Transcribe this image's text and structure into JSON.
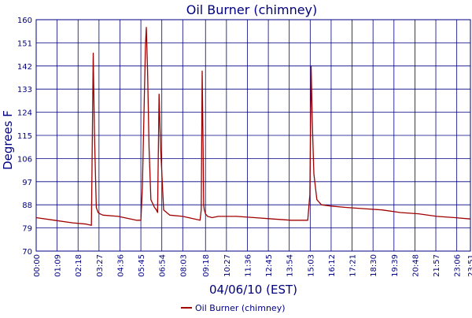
{
  "chart_data": {
    "type": "line",
    "title": "Oil Burner (chimney)",
    "xlabel": "04/06/10 (EST)",
    "ylabel": "Degrees F",
    "ylim": [
      70,
      160
    ],
    "yticks": [
      70,
      79,
      88,
      97,
      106,
      115,
      124,
      133,
      142,
      151,
      160
    ],
    "xlim": [
      0,
      1431
    ],
    "xticks": [
      "00:00",
      "01:09",
      "02:18",
      "03:27",
      "04:36",
      "05:45",
      "06:54",
      "08:03",
      "09:18",
      "10:27",
      "11:36",
      "12:45",
      "13:54",
      "15:03",
      "16:12",
      "17:21",
      "18:30",
      "19:39",
      "20:48",
      "21:57",
      "23:06",
      "23:51"
    ],
    "grid": true,
    "legend": "bottom-center",
    "series": [
      {
        "name": "Oil Burner (chimney)",
        "color": "#a00000",
        "x": [
          "00:00",
          "01:00",
          "02:00",
          "02:45",
          "03:02",
          "03:08",
          "03:12",
          "03:18",
          "03:24",
          "03:30",
          "03:40",
          "04:30",
          "05:30",
          "05:45",
          "05:50",
          "06:00",
          "06:03",
          "06:07",
          "06:12",
          "06:18",
          "06:30",
          "06:36",
          "06:40",
          "06:45",
          "06:50",
          "07:00",
          "07:20",
          "08:03",
          "09:00",
          "09:04",
          "09:07",
          "09:10",
          "09:12",
          "09:14",
          "09:18",
          "09:25",
          "09:40",
          "10:00",
          "11:00",
          "12:00",
          "13:00",
          "14:00",
          "14:55",
          "15:02",
          "15:06",
          "15:10",
          "15:15",
          "15:25",
          "15:40",
          "16:12",
          "17:00",
          "18:00",
          "19:00",
          "20:00",
          "21:00",
          "22:00",
          "23:00",
          "23:51"
        ],
        "values": [
          83,
          82,
          81,
          80.5,
          80,
          147,
          115,
          87,
          85,
          84.5,
          84,
          83.5,
          82,
          82,
          95,
          150,
          157,
          140,
          110,
          90,
          87,
          86,
          85,
          131,
          110,
          86,
          84,
          83.5,
          82,
          86,
          140,
          110,
          88,
          86,
          84.5,
          83.5,
          83,
          83.5,
          83.5,
          83,
          82.5,
          82,
          82,
          92,
          142,
          120,
          100,
          90,
          88,
          87.5,
          87,
          86.5,
          86,
          85,
          84.5,
          83.5,
          83,
          82.5
        ]
      }
    ]
  }
}
